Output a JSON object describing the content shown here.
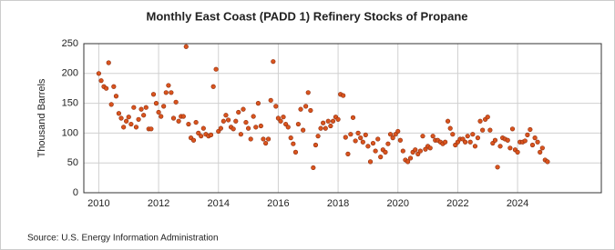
{
  "chart_data": {
    "type": "scatter",
    "title": "Monthly East Coast (PADD 1) Refinery Stocks of Propane",
    "y_label": "Thousand Barrels",
    "source": "Source: U.S. Energy Information Administration",
    "color": "#d9541e",
    "grid": true,
    "xlim": [
      2009.5,
      2026.8
    ],
    "xticks": [
      2010,
      2012,
      2014,
      2016,
      2018,
      2020,
      2022,
      2024
    ],
    "ylim": [
      0,
      250
    ],
    "yticks": [
      0,
      50,
      100,
      150,
      200,
      250
    ],
    "x": [
      2010,
      2010.08,
      2010.17,
      2010.25,
      2010.33,
      2010.42,
      2010.5,
      2010.58,
      2010.67,
      2010.75,
      2010.83,
      2010.92,
      2011,
      2011.08,
      2011.17,
      2011.25,
      2011.33,
      2011.42,
      2011.5,
      2011.58,
      2011.67,
      2011.75,
      2011.83,
      2011.92,
      2012,
      2012.08,
      2012.17,
      2012.25,
      2012.33,
      2012.42,
      2012.5,
      2012.58,
      2012.67,
      2012.75,
      2012.83,
      2012.92,
      2013,
      2013.08,
      2013.17,
      2013.25,
      2013.33,
      2013.42,
      2013.5,
      2013.58,
      2013.67,
      2013.75,
      2013.83,
      2013.92,
      2014,
      2014.08,
      2014.17,
      2014.25,
      2014.33,
      2014.42,
      2014.5,
      2014.58,
      2014.67,
      2014.75,
      2014.83,
      2014.92,
      2015,
      2015.08,
      2015.17,
      2015.25,
      2015.33,
      2015.42,
      2015.5,
      2015.58,
      2015.67,
      2015.75,
      2015.83,
      2015.92,
      2016,
      2016.08,
      2016.17,
      2016.25,
      2016.33,
      2016.42,
      2016.5,
      2016.58,
      2016.67,
      2016.75,
      2016.83,
      2016.92,
      2017,
      2017.08,
      2017.17,
      2017.25,
      2017.33,
      2017.42,
      2017.5,
      2017.58,
      2017.67,
      2017.75,
      2017.83,
      2017.92,
      2018,
      2018.08,
      2018.17,
      2018.25,
      2018.33,
      2018.42,
      2018.5,
      2018.58,
      2018.67,
      2018.75,
      2018.83,
      2018.92,
      2019,
      2019.08,
      2019.17,
      2019.25,
      2019.33,
      2019.42,
      2019.5,
      2019.58,
      2019.67,
      2019.75,
      2019.83,
      2019.92,
      2020,
      2020.08,
      2020.17,
      2020.25,
      2020.33,
      2020.42,
      2020.5,
      2020.58,
      2020.67,
      2020.75,
      2020.83,
      2020.92,
      2021,
      2021.08,
      2021.17,
      2021.25,
      2021.33,
      2021.42,
      2021.5,
      2021.58,
      2021.67,
      2021.75,
      2021.83,
      2021.92,
      2022,
      2022.08,
      2022.17,
      2022.25,
      2022.33,
      2022.42,
      2022.5,
      2022.58,
      2022.67,
      2022.75,
      2022.83,
      2022.92,
      2023,
      2023.08,
      2023.17,
      2023.25,
      2023.33,
      2023.42,
      2023.5,
      2023.58,
      2023.67,
      2023.75,
      2023.83,
      2023.92,
      2024,
      2024.08,
      2024.17,
      2024.25,
      2024.33,
      2024.42,
      2024.5,
      2024.58,
      2024.67,
      2024.75,
      2024.83,
      2024.92,
      2025
    ],
    "values": [
      200,
      188,
      178,
      175,
      218,
      148,
      178,
      162,
      133,
      125,
      110,
      120,
      127,
      115,
      143,
      110,
      123,
      140,
      130,
      143,
      107,
      107,
      165,
      150,
      135,
      128,
      145,
      168,
      180,
      168,
      125,
      152,
      120,
      128,
      128,
      245,
      115,
      92,
      88,
      118,
      100,
      95,
      108,
      98,
      95,
      97,
      178,
      207,
      103,
      108,
      120,
      130,
      122,
      110,
      107,
      120,
      135,
      98,
      140,
      118,
      108,
      90,
      128,
      110,
      150,
      112,
      90,
      83,
      90,
      155,
      220,
      145,
      125,
      120,
      127,
      115,
      110,
      92,
      82,
      68,
      115,
      140,
      105,
      145,
      168,
      138,
      42,
      80,
      95,
      108,
      117,
      108,
      120,
      112,
      120,
      127,
      123,
      165,
      163,
      93,
      65,
      98,
      126,
      87,
      100,
      92,
      85,
      97,
      78,
      52,
      83,
      70,
      90,
      60,
      72,
      68,
      82,
      98,
      92,
      98,
      103,
      88,
      70,
      55,
      52,
      58,
      68,
      72,
      65,
      70,
      95,
      73,
      78,
      75,
      95,
      88,
      88,
      85,
      82,
      85,
      120,
      108,
      98,
      80,
      85,
      90,
      90,
      85,
      95,
      85,
      98,
      78,
      92,
      120,
      105,
      123,
      127,
      105,
      83,
      88,
      43,
      78,
      92,
      90,
      88,
      75,
      107,
      72,
      68,
      85,
      85,
      87,
      97,
      106,
      80,
      92,
      85,
      68,
      75,
      55,
      52
    ]
  }
}
